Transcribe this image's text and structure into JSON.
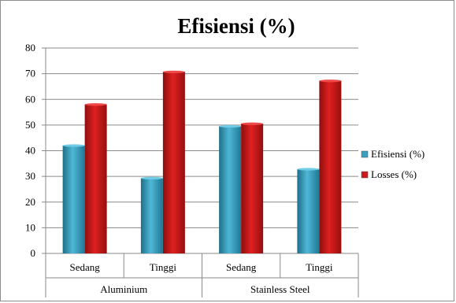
{
  "chart_data": {
    "type": "bar",
    "title": "Efisiensi (%)",
    "groups": [
      {
        "label": "Aluminium",
        "categories": [
          "Sedang",
          "Tinggi"
        ]
      },
      {
        "label": "Stainless Steel",
        "categories": [
          "Sedang",
          "Tinggi"
        ]
      }
    ],
    "categories": [
      "Sedang",
      "Tinggi",
      "Sedang",
      "Tinggi"
    ],
    "series": [
      {
        "name": "Efisiensi (%)",
        "values": [
          42,
          29.3,
          49.5,
          32.8
        ],
        "color": "#3aa0c0"
      },
      {
        "name": "Losses (%)",
        "values": [
          58,
          70.7,
          50.5,
          67.2
        ],
        "color": "#cc1b1b"
      }
    ],
    "ylim": [
      0,
      80
    ],
    "yticks": [
      0,
      10,
      20,
      30,
      40,
      50,
      60,
      70,
      80
    ],
    "grid": true,
    "legend_position": "right",
    "style": "3d-shaded"
  }
}
